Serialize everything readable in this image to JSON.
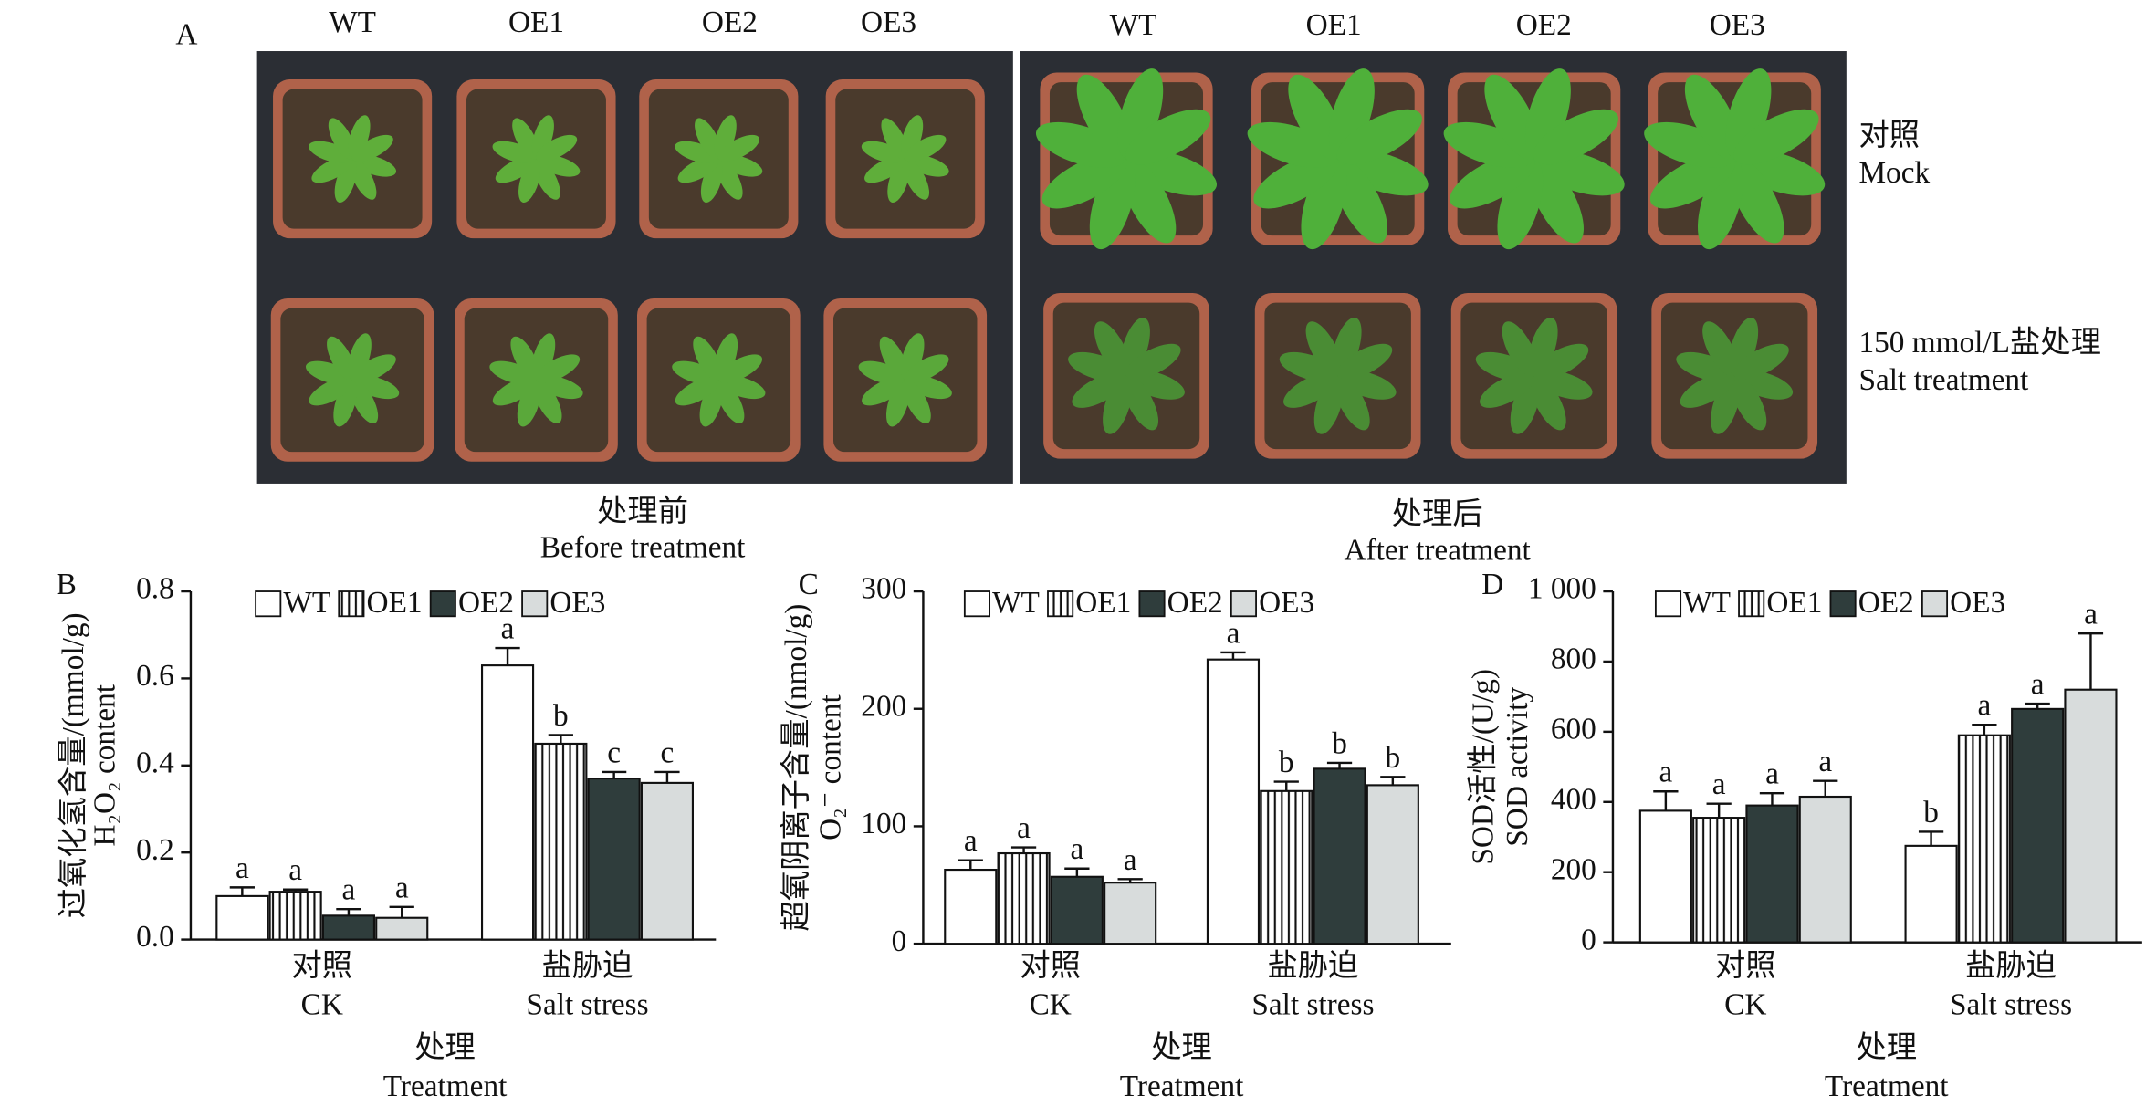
{
  "panel_a": {
    "label": "A",
    "columns_before": [
      "WT",
      "OE1",
      "OE2",
      "OE3"
    ],
    "columns_after": [
      "WT",
      "OE1",
      "OE2",
      "OE3"
    ],
    "rows": [
      {
        "zh": "对照",
        "en": "Mock"
      },
      {
        "zh": "150 mmol/L盐处理",
        "en": "Salt treatment"
      }
    ],
    "captions": [
      {
        "zh": "处理前",
        "en": "Before treatment"
      },
      {
        "zh": "处理后",
        "en": "After treatment"
      }
    ]
  },
  "chart_data": [
    {
      "type": "bar",
      "panel": "B",
      "y_label_zh": "过氧化氢含量/(mmol/g)",
      "y_label_en": "H₂O₂ content",
      "x_label_zh": "处理",
      "x_label_en": "Treatment",
      "categories_zh": [
        "对照",
        "盐胁迫"
      ],
      "categories": [
        "CK",
        "Salt stress"
      ],
      "ylim": [
        0,
        0.8
      ],
      "yticks": [
        {
          "value": 0,
          "label": "0.0"
        },
        0.2,
        0.4,
        0.6,
        0.8
      ],
      "series": [
        {
          "name": "WT",
          "color": "#ffffff",
          "values": [
            0.1,
            0.63
          ],
          "errors": [
            0.02,
            0.04
          ],
          "letters": [
            "a",
            "a"
          ]
        },
        {
          "name": "OE1",
          "color": "#ffffff",
          "pattern": "vertical-lines",
          "values": [
            0.11,
            0.45
          ],
          "errors": [
            0.005,
            0.02
          ],
          "letters": [
            "a",
            "b"
          ]
        },
        {
          "name": "OE2",
          "color": "#2f3d3c",
          "values": [
            0.055,
            0.37
          ],
          "errors": [
            0.015,
            0.015
          ],
          "letters": [
            "a",
            "c"
          ]
        },
        {
          "name": "OE3",
          "color": "#d8dcdc",
          "values": [
            0.05,
            0.36
          ],
          "errors": [
            0.025,
            0.025
          ],
          "letters": [
            "a",
            "c"
          ]
        }
      ]
    },
    {
      "type": "bar",
      "panel": "C",
      "y_label_zh": "超氧阴离子含量/(nmol/g)",
      "y_label_en": "O₂⁻ content",
      "x_label_zh": "处理",
      "x_label_en": "Treatment",
      "categories_zh": [
        "对照",
        "盐胁迫"
      ],
      "categories": [
        "CK",
        "Salt stress"
      ],
      "ylim": [
        0,
        300
      ],
      "yticks": [
        0,
        100,
        200,
        300
      ],
      "series": [
        {
          "name": "WT",
          "color": "#ffffff",
          "values": [
            63,
            242
          ],
          "errors": [
            8,
            6
          ],
          "letters": [
            "a",
            "a"
          ]
        },
        {
          "name": "OE1",
          "color": "#ffffff",
          "pattern": "vertical-lines",
          "values": [
            77,
            130
          ],
          "errors": [
            5,
            8
          ],
          "letters": [
            "a",
            "b"
          ]
        },
        {
          "name": "OE2",
          "color": "#2f3d3c",
          "values": [
            57,
            149
          ],
          "errors": [
            7,
            5
          ],
          "letters": [
            "a",
            "b"
          ]
        },
        {
          "name": "OE3",
          "color": "#d8dcdc",
          "values": [
            52,
            135
          ],
          "errors": [
            3,
            7
          ],
          "letters": [
            "a",
            "b"
          ]
        }
      ]
    },
    {
      "type": "bar",
      "panel": "D",
      "y_label_zh": "SOD活性/(U/g)",
      "y_label_en": "SOD activity",
      "x_label_zh": "处理",
      "x_label_en": "Treatment",
      "categories_zh": [
        "对照",
        "盐胁迫"
      ],
      "categories": [
        "CK",
        "Salt stress"
      ],
      "ylim": [
        0,
        1000
      ],
      "yticks": [
        0,
        200,
        400,
        600,
        800,
        {
          "value": 1000,
          "label": "1 000"
        }
      ],
      "series": [
        {
          "name": "WT",
          "color": "#ffffff",
          "values": [
            375,
            275
          ],
          "errors": [
            55,
            40
          ],
          "letters": [
            "a",
            "b"
          ]
        },
        {
          "name": "OE1",
          "color": "#ffffff",
          "pattern": "vertical-lines",
          "values": [
            355,
            590
          ],
          "errors": [
            40,
            30
          ],
          "letters": [
            "a",
            "a"
          ]
        },
        {
          "name": "OE2",
          "color": "#2f3d3c",
          "values": [
            390,
            665
          ],
          "errors": [
            35,
            15
          ],
          "letters": [
            "a",
            "a"
          ]
        },
        {
          "name": "OE3",
          "color": "#d8dcdc",
          "values": [
            415,
            720
          ],
          "errors": [
            45,
            160
          ],
          "letters": [
            "a",
            "a"
          ]
        }
      ]
    }
  ]
}
